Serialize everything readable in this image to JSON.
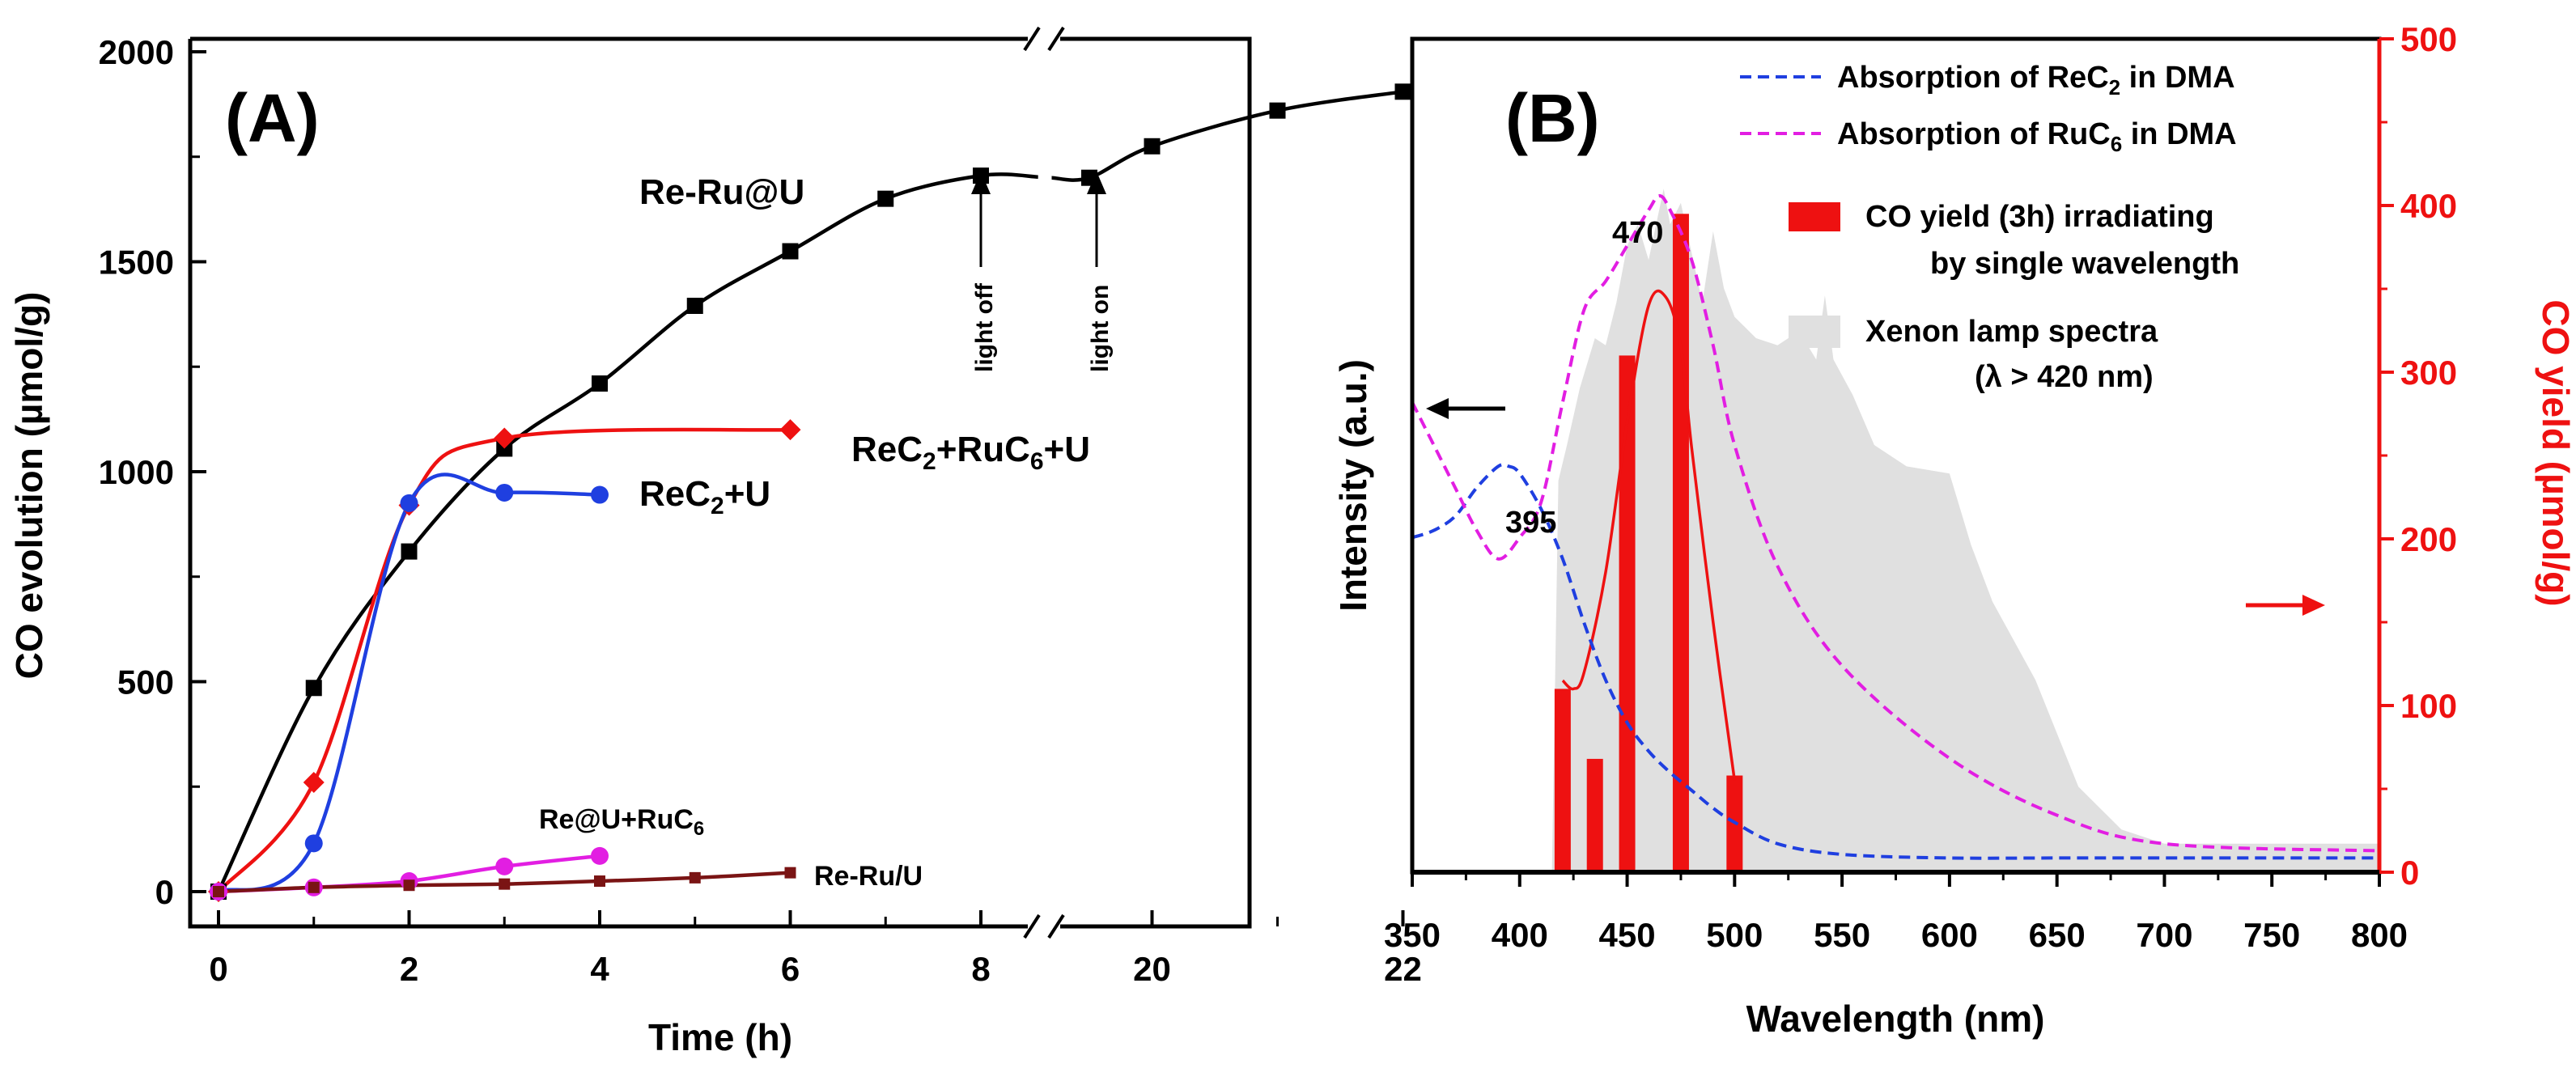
{
  "colors": {
    "black": "#000000",
    "red": "#ee1111",
    "blue": "#1f3fe0",
    "magenta": "#e21ee2",
    "darkred": "#7a1414",
    "gray_fill": "#e0e0e0",
    "yield_axis": "#ee1111"
  },
  "chart_data": [
    {
      "panel": "A",
      "type": "line",
      "panel_label": "(A)",
      "xlabel": "Time (h)",
      "ylabel": "CO evolution (µmol/g)",
      "x_ticks": [
        "0",
        "2",
        "4",
        "6",
        "8",
        "20",
        "22"
      ],
      "y_ticks": [
        "0",
        "500",
        "1000",
        "1500",
        "2000"
      ],
      "ylim": [
        0,
        2000
      ],
      "axis_break": "//",
      "series": [
        {
          "name": "Re-Ru@U",
          "marker": "square",
          "color": "#000000",
          "x": [
            0,
            1,
            2,
            3,
            4,
            5,
            6,
            7,
            8,
            19.5,
            20,
            21,
            22
          ],
          "y": [
            0,
            485,
            810,
            1055,
            1210,
            1395,
            1525,
            1650,
            1705,
            1700,
            1775,
            1860,
            1905
          ]
        },
        {
          "name": "ReC2+RuC6+U",
          "marker": "diamond",
          "color": "#ee1111",
          "x": [
            0,
            1,
            2,
            3,
            6
          ],
          "y": [
            0,
            260,
            920,
            1080,
            1100
          ]
        },
        {
          "name": "ReC2+U",
          "marker": "circle",
          "color": "#1f3fe0",
          "x": [
            0,
            1,
            2,
            3,
            4
          ],
          "y": [
            0,
            115,
            925,
            950,
            945
          ]
        },
        {
          "name": "Re@U+RuC6",
          "marker": "circle",
          "color": "#e21ee2",
          "x": [
            0,
            1,
            2,
            3,
            4
          ],
          "y": [
            0,
            10,
            25,
            60,
            85
          ]
        },
        {
          "name": "Re-Ru/U",
          "marker": "square",
          "color": "#7a1414",
          "x": [
            0,
            1,
            2,
            3,
            4,
            5,
            6
          ],
          "y": [
            0,
            10,
            15,
            18,
            25,
            33,
            45
          ]
        }
      ],
      "series_labels": {
        "re_ru_u": "Re-Ru@U",
        "rec2_ruc6_u": "ReC2+RuC6+U",
        "rec2_u": "ReC2+U",
        "re_u_ruc6": "Re@U+RuC6",
        "re_ru_slash_u": "Re-Ru/U"
      },
      "annotations": [
        "light off",
        "light on"
      ]
    },
    {
      "panel": "B",
      "type": "area",
      "panel_label": "(B)",
      "xlabel": "Wavelength (nm)",
      "ylabel_left": "Intensity (a.u.)",
      "ylabel_right": "CO yield (µmol/g)",
      "x_ticks": [
        "350",
        "400",
        "450",
        "500",
        "550",
        "600",
        "650",
        "700",
        "750",
        "800"
      ],
      "xlim": [
        350,
        800
      ],
      "right_ticks": [
        "0",
        "100",
        "200",
        "300",
        "400",
        "500"
      ],
      "right_ylim": [
        0,
        500
      ],
      "peak_labels": [
        "395",
        "470"
      ],
      "legend": {
        "absorption_rec2_prefix": "Absorption of ReC",
        "absorption_rec2_suffix": " in DMA",
        "absorption_ruc6_prefix": "Absorption of RuC",
        "absorption_ruc6_suffix": " in DMA",
        "co_yield_line1": "CO yield (3h) irradiating",
        "co_yield_line2": "by single wavelength",
        "xenon_line1": "Xenon lamp spectra",
        "xenon_line2": "(λ > 420 nm)"
      },
      "co_yield_bars": {
        "wavelength_nm": [
          420,
          435,
          450,
          475,
          500
        ],
        "co_yield": [
          110,
          68,
          310,
          395,
          58
        ]
      },
      "co_yield_fit": {
        "wavelength_nm": [
          420,
          425,
          430,
          440,
          450,
          460,
          468,
          475,
          480,
          490,
          500
        ],
        "co_yield": [
          115,
          110,
          120,
          180,
          270,
          340,
          345,
          315,
          255,
          150,
          55
        ]
      },
      "absorption_rec2": {
        "name": "Absorption of ReC2 in DMA",
        "color": "#1f3fe0",
        "x": [
          350,
          360,
          370,
          380,
          390,
          395,
          400,
          410,
          420,
          430,
          440,
          450,
          460,
          470,
          480,
          490,
          500,
          520,
          550,
          600,
          650,
          700,
          800
        ],
        "y_rel": [
          0.47,
          0.48,
          0.5,
          0.54,
          0.57,
          0.57,
          0.56,
          0.51,
          0.44,
          0.35,
          0.27,
          0.21,
          0.17,
          0.14,
          0.115,
          0.09,
          0.07,
          0.04,
          0.025,
          0.02,
          0.02,
          0.02,
          0.02
        ]
      },
      "absorption_ruc6": {
        "name": "Absorption of RuC6 in DMA",
        "color": "#e21ee2",
        "x": [
          350,
          360,
          370,
          380,
          390,
          400,
          410,
          420,
          430,
          440,
          450,
          460,
          465,
          470,
          480,
          490,
          500,
          520,
          550,
          600,
          650,
          700,
          800
        ],
        "y_rel": [
          0.66,
          0.6,
          0.54,
          0.48,
          0.44,
          0.47,
          0.52,
          0.66,
          0.79,
          0.83,
          0.88,
          0.93,
          0.95,
          0.93,
          0.86,
          0.74,
          0.6,
          0.43,
          0.29,
          0.16,
          0.08,
          0.04,
          0.03
        ]
      },
      "xenon_spectrum": {
        "name": "Xenon lamp spectra (λ > 420 nm)",
        "color": "#e0e0e0",
        "x": [
          415,
          418,
          422,
          428,
          435,
          440,
          445,
          450,
          455,
          460,
          467,
          470,
          475,
          480,
          485,
          490,
          495,
          500,
          510,
          520,
          530,
          538,
          542,
          546,
          555,
          565,
          580,
          600,
          610,
          620,
          640,
          660,
          680,
          700,
          720,
          800
        ],
        "y_rel": [
          0.0,
          0.55,
          0.6,
          0.68,
          0.75,
          0.74,
          0.8,
          0.88,
          0.91,
          0.86,
          0.96,
          0.91,
          0.94,
          0.87,
          0.8,
          0.9,
          0.82,
          0.78,
          0.75,
          0.74,
          0.76,
          0.72,
          0.81,
          0.72,
          0.67,
          0.6,
          0.57,
          0.56,
          0.46,
          0.38,
          0.27,
          0.12,
          0.06,
          0.04,
          0.04,
          0.04
        ]
      },
      "arrows": [
        "left-arrow",
        "right-arrow"
      ]
    }
  ]
}
